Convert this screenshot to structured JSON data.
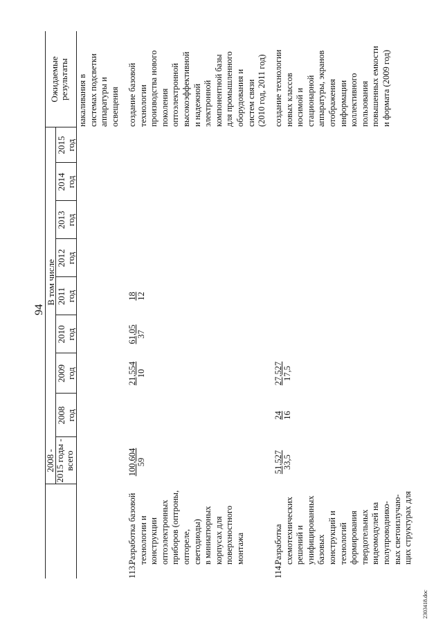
{
  "page_number": "94",
  "header": {
    "col_total_line1": "2008 -",
    "col_total_line2": "2015 годы -",
    "col_total_line3": "всего",
    "in_that_number": "В том числе",
    "years": [
      {
        "year": "2008",
        "unit": "год"
      },
      {
        "year": "2009",
        "unit": "год"
      },
      {
        "year": "2010",
        "unit": "год"
      },
      {
        "year": "2011",
        "unit": "год"
      },
      {
        "year": "2012",
        "unit": "год"
      },
      {
        "year": "2013",
        "unit": "год"
      },
      {
        "year": "2014",
        "unit": "год"
      },
      {
        "year": "2015",
        "unit": "год"
      }
    ],
    "expected_line1": "Ожидаемые",
    "expected_line2": "результаты"
  },
  "continuation_text": [
    "накаливания в",
    "системах подсветки",
    "аппаратуры и",
    "освещения"
  ],
  "rows": [
    {
      "number": "113.",
      "title": [
        "Разработка базовой",
        "технологии и",
        "конструкции",
        "оптоэлектронных",
        "приборов (оптроны,",
        "оптореле,",
        "светодиоды)",
        "в миниатюрных",
        "корпусах для",
        "поверхностного",
        "монтажа"
      ],
      "total": {
        "top": "100,604",
        "bottom": "59"
      },
      "y2008": {
        "top": "",
        "bottom": ""
      },
      "y2009": {
        "top": "21,554",
        "bottom": "10"
      },
      "y2010": {
        "top": "61,05",
        "bottom": "37"
      },
      "y2011": {
        "top": "18",
        "bottom": "12"
      },
      "result": [
        "создание базовой",
        "технологии",
        "производства нового",
        "поколения",
        "оптоэлектронной",
        "высокоэффективной",
        "и надежной",
        "электронной",
        "компонентной базы",
        "для промышленного",
        "оборудования и",
        "систем связи",
        "(2010 год, 2011 год)"
      ]
    },
    {
      "number": "114.",
      "title": [
        "Разработка",
        "схемотехнических",
        "решений и",
        "унифицированных",
        "базовых",
        "конструкций и",
        "технологий",
        "формирования",
        "твердотельных",
        "видеомодулей на",
        "полупроводнико-",
        "вых светоизлучаю-",
        "щих структурах для"
      ],
      "total": {
        "top": "51,527",
        "bottom": "33,5"
      },
      "y2008": {
        "top": "24",
        "bottom": "16"
      },
      "y2009": {
        "top": "27,527",
        "bottom": "17,5"
      },
      "y2010": {
        "top": "",
        "bottom": ""
      },
      "y2011": {
        "top": "",
        "bottom": ""
      },
      "result": [
        "создание технологии",
        "новых классов",
        "носимой и",
        "стационарной",
        "аппаратуры, экранов",
        "отображения",
        "информации",
        "коллективного",
        "пользования",
        "повышенных емкости",
        "и формата (2009 год)"
      ]
    }
  ],
  "footer": "2303418.doc"
}
